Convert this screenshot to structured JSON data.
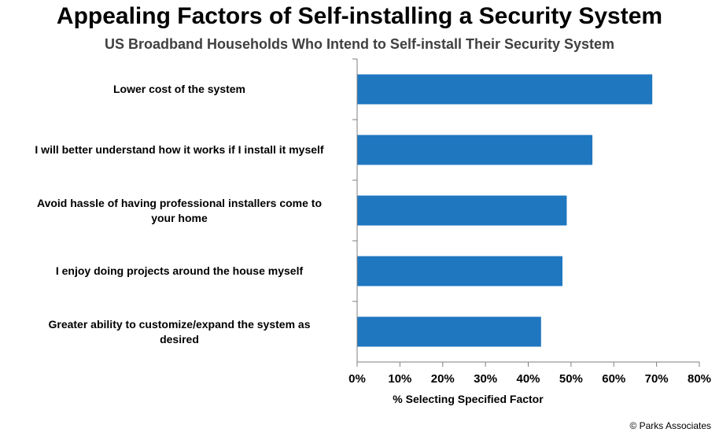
{
  "chart_data": {
    "type": "bar",
    "orientation": "horizontal",
    "title": "Appealing Factors of Self-installing a Security System",
    "subtitle": "US Broadband Households Who Intend to Self-install  Their Security System",
    "categories": [
      [
        "Lower cost of the system"
      ],
      [
        "I will better understand how it works if I install it myself"
      ],
      [
        "Avoid hassle of having professional installers come to",
        "your home"
      ],
      [
        "I enjoy doing projects around the house myself"
      ],
      [
        "Greater ability to customize/expand the system as",
        "desired"
      ]
    ],
    "values": [
      69,
      55,
      49,
      48,
      43
    ],
    "xlabel": "% Selecting Specified Factor",
    "xlim": [
      0,
      80
    ],
    "xticks": [
      "0%",
      "10%",
      "20%",
      "30%",
      "40%",
      "50%",
      "60%",
      "70%",
      "80%"
    ],
    "bar_color": "#1f77c0",
    "grid": false
  },
  "credit": "© Parks Associates"
}
